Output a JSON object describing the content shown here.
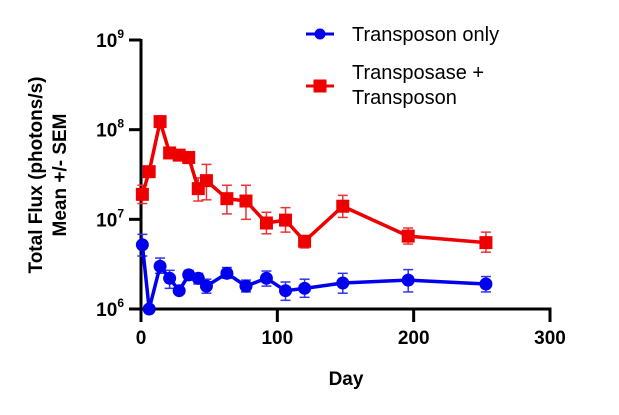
{
  "chart_data": {
    "type": "line",
    "title": "",
    "xlabel": "Day",
    "ylabel_lines": [
      "Total Flux (photons/s)",
      "Mean +/-  SEM"
    ],
    "xlim": [
      0,
      300
    ],
    "ylim": [
      1000000,
      1000000000
    ],
    "yscale": "log",
    "x_ticks": [
      0,
      100,
      200,
      300
    ],
    "x_tick_labels": [
      "0",
      "100",
      "200",
      "300"
    ],
    "y_ticks": [
      {
        "value": 1000000000,
        "base": "10",
        "exp": "9"
      },
      {
        "value": 100000000,
        "base": "10",
        "exp": "8"
      },
      {
        "value": 10000000,
        "base": "10",
        "exp": "7"
      },
      {
        "value": 1000000,
        "base": "10",
        "exp": "6"
      }
    ],
    "grid": false,
    "legend_position": "top-right",
    "series": [
      {
        "name": "Transposon only",
        "legend_lines": [
          "Transposon only"
        ],
        "color": "#0000ee",
        "marker": "circle",
        "x": [
          1,
          6,
          14,
          21,
          28,
          35,
          42,
          48,
          63,
          77,
          92,
          106,
          120,
          148,
          196,
          253
        ],
        "y": [
          5200000,
          1000000,
          3000000,
          2200000,
          1600000,
          2400000,
          2200000,
          1800000,
          2500000,
          1800000,
          2200000,
          1600000,
          1700000,
          1950000,
          2100000,
          1900000
        ],
        "sem_low": [
          3900000,
          1000000,
          2500000,
          1700000,
          1600000,
          2100000,
          1900000,
          1500000,
          2200000,
          1550000,
          1800000,
          1250000,
          1350000,
          1500000,
          1550000,
          1550000
        ],
        "sem_high": [
          6800000,
          1000000,
          3700000,
          2700000,
          1600000,
          2700000,
          2500000,
          2150000,
          2900000,
          2100000,
          2650000,
          2000000,
          2150000,
          2500000,
          2750000,
          2300000
        ]
      },
      {
        "name": "Transposase + Transposon",
        "legend_lines": [
          "Transposase  +",
          "Transposon"
        ],
        "color": "#ee0000",
        "marker": "square",
        "x": [
          1,
          6,
          14,
          21,
          28,
          35,
          42,
          48,
          63,
          77,
          92,
          106,
          120,
          148,
          196,
          253
        ],
        "y": [
          19000000,
          34000000,
          123000000,
          55000000,
          52000000,
          49000000,
          22000000,
          27000000,
          17000000,
          16000000,
          9100000,
          9800000,
          5700000,
          14000000,
          6500000,
          5500000
        ],
        "sem_low": [
          15000000,
          34000000,
          123000000,
          48000000,
          46000000,
          42000000,
          16000000,
          16500000,
          11500000,
          10000000,
          6900000,
          7200000,
          4800000,
          10500000,
          5300000,
          4300000
        ],
        "sem_high": [
          24000000,
          34000000,
          123000000,
          63000000,
          59000000,
          55000000,
          29000000,
          41000000,
          24000000,
          24000000,
          12000000,
          13500000,
          6500000,
          18500000,
          8000000,
          7200000
        ]
      }
    ]
  }
}
